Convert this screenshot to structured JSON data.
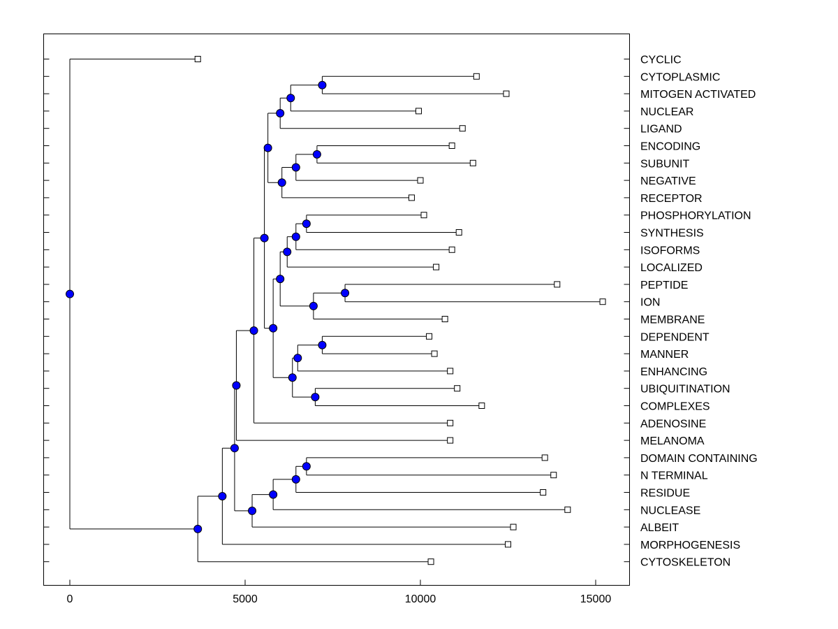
{
  "chart_data": {
    "type": "dendrogram",
    "title": "",
    "xlabel": "",
    "ylabel": "",
    "xlim": [
      -750,
      16000
    ],
    "x_ticks": [
      0,
      5000,
      10000,
      15000
    ],
    "x_tick_labels": [
      "0",
      "5000",
      "10000",
      "15000"
    ],
    "grid": false,
    "node_color": "#0000ff",
    "leaf_color": "#ffffff",
    "line_color": "#000000",
    "leaves": [
      {
        "label": "CYCLIC",
        "x": 3650
      },
      {
        "label": "CYTOPLASMIC",
        "x": 11600
      },
      {
        "label": "MITOGEN ACTIVATED",
        "x": 12450
      },
      {
        "label": "NUCLEAR",
        "x": 9950
      },
      {
        "label": "LIGAND",
        "x": 11200
      },
      {
        "label": "ENCODING",
        "x": 10900
      },
      {
        "label": "SUBUNIT",
        "x": 11500
      },
      {
        "label": "NEGATIVE",
        "x": 10000
      },
      {
        "label": "RECEPTOR",
        "x": 9750
      },
      {
        "label": "PHOSPHORYLATION",
        "x": 10100
      },
      {
        "label": "SYNTHESIS",
        "x": 11100
      },
      {
        "label": "ISOFORMS",
        "x": 10900
      },
      {
        "label": "LOCALIZED",
        "x": 10450
      },
      {
        "label": "PEPTIDE",
        "x": 13900
      },
      {
        "label": "ION",
        "x": 15200
      },
      {
        "label": "MEMBRANE",
        "x": 10700
      },
      {
        "label": "DEPENDENT",
        "x": 10250
      },
      {
        "label": "MANNER",
        "x": 10400
      },
      {
        "label": "ENHANCING",
        "x": 10850
      },
      {
        "label": "UBIQUITINATION",
        "x": 11050
      },
      {
        "label": "COMPLEXES",
        "x": 11750
      },
      {
        "label": "ADENOSINE",
        "x": 10850
      },
      {
        "label": "MELANOMA",
        "x": 10850
      },
      {
        "label": "DOMAIN CONTAINING",
        "x": 13550
      },
      {
        "label": "N TERMINAL",
        "x": 13800
      },
      {
        "label": "RESIDUE",
        "x": 13500
      },
      {
        "label": "NUCLEASE",
        "x": 14200
      },
      {
        "label": "ALBEIT",
        "x": 12650
      },
      {
        "label": "MORPHOGENESIS",
        "x": 12500
      },
      {
        "label": "CYTOSKELETON",
        "x": 10300
      }
    ],
    "merges": [
      {
        "id": "n1",
        "x": 7200,
        "children": [
          1,
          2
        ]
      },
      {
        "id": "n2",
        "x": 6300,
        "children": [
          "n1",
          3
        ]
      },
      {
        "id": "n3",
        "x": 6000,
        "children": [
          "n2",
          4
        ]
      },
      {
        "id": "n4",
        "x": 7050,
        "children": [
          5,
          6
        ]
      },
      {
        "id": "n5",
        "x": 6450,
        "children": [
          "n4",
          7
        ]
      },
      {
        "id": "n6",
        "x": 6050,
        "children": [
          "n5",
          8
        ]
      },
      {
        "id": "n7",
        "x": 5650,
        "children": [
          "n3",
          "n6"
        ]
      },
      {
        "id": "n8",
        "x": 6750,
        "children": [
          9,
          10
        ]
      },
      {
        "id": "n9",
        "x": 6450,
        "children": [
          "n8",
          11
        ]
      },
      {
        "id": "n10",
        "x": 6200,
        "children": [
          "n9",
          12
        ]
      },
      {
        "id": "n11",
        "x": 7850,
        "children": [
          13,
          14
        ]
      },
      {
        "id": "n12",
        "x": 6950,
        "children": [
          "n11",
          15
        ]
      },
      {
        "id": "n13",
        "x": 6000,
        "children": [
          "n10",
          "n12"
        ]
      },
      {
        "id": "n14",
        "x": 7200,
        "children": [
          16,
          17
        ]
      },
      {
        "id": "n15",
        "x": 6500,
        "children": [
          "n14",
          18
        ]
      },
      {
        "id": "n16",
        "x": 7000,
        "children": [
          19,
          20
        ]
      },
      {
        "id": "n17",
        "x": 6350,
        "children": [
          "n15",
          "n16"
        ]
      },
      {
        "id": "n18",
        "x": 5800,
        "children": [
          "n13",
          "n17"
        ]
      },
      {
        "id": "n19",
        "x": 5550,
        "children": [
          "n7",
          "n18"
        ]
      },
      {
        "id": "n20",
        "x": 5250,
        "children": [
          "n19",
          21
        ]
      },
      {
        "id": "n21",
        "x": 4750,
        "children": [
          "n20",
          22
        ]
      },
      {
        "id": "n22",
        "x": 6750,
        "children": [
          23,
          24
        ]
      },
      {
        "id": "n23",
        "x": 6450,
        "children": [
          "n22",
          25
        ]
      },
      {
        "id": "n24",
        "x": 5800,
        "children": [
          "n23",
          26
        ]
      },
      {
        "id": "n25",
        "x": 5200,
        "children": [
          "n24",
          27
        ]
      },
      {
        "id": "n26",
        "x": 4700,
        "children": [
          "n21",
          "n25"
        ]
      },
      {
        "id": "n27",
        "x": 4350,
        "children": [
          "n26",
          28
        ]
      },
      {
        "id": "n28",
        "x": 3650,
        "children": [
          "n27",
          29
        ]
      },
      {
        "id": "n29",
        "x": 0,
        "children": [
          0,
          "n28"
        ]
      }
    ]
  }
}
